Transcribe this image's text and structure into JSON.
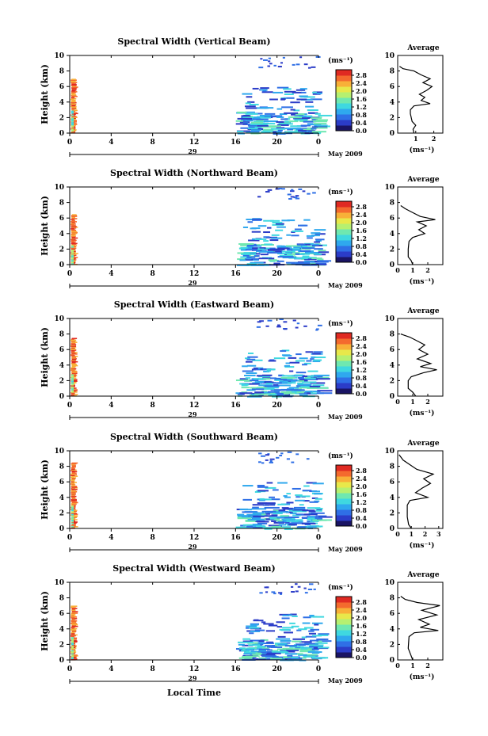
{
  "figure": {
    "shared": {
      "ylabel": "Height (km)",
      "xticks": [
        "0",
        "4",
        "8",
        "12",
        "16",
        "20",
        "0"
      ],
      "date": "May 2009",
      "day_label": "29",
      "colorbar_unit": "(ms⁻¹)",
      "colorbar_ticks": [
        "0.0",
        "0.4",
        "0.8",
        "1.2",
        "1.6",
        "2.0",
        "2.4",
        "2.8"
      ],
      "avg_title": "Average",
      "avg_xlabel": "(ms⁻¹)",
      "xlabel": "Local Time"
    },
    "colormap": [
      "#1a1464",
      "#2b3cc8",
      "#2f6fe6",
      "#2fa8ee",
      "#3fd8e0",
      "#6fe8b0",
      "#b6f070",
      "#e8e84a",
      "#f8b038",
      "#f46a2e",
      "#e02a22"
    ]
  },
  "chart_data": [
    {
      "type": "heatmap",
      "title": "Spectral Width (Vertical Beam)",
      "ylabel": "Height (km)",
      "xlim_hours": [
        0,
        24
      ],
      "ylim_km": [
        0,
        10
      ],
      "colorbar_range": [
        0.0,
        3.0
      ],
      "data_segments": [
        {
          "t_start": 0.0,
          "t_end": 0.7,
          "h_max": 7.0,
          "dominant": "high (~2.8)"
        },
        {
          "t_start": 16.0,
          "t_end": 24.0,
          "h_max": 10.0,
          "dominant": "low (0.3-1.2)"
        }
      ],
      "average_profile": {
        "xticks": [
          "1",
          "2"
        ],
        "xlim": [
          0,
          2.5
        ],
        "points": [
          [
            0.9,
            0
          ],
          [
            0.85,
            0.5
          ],
          [
            1.0,
            1.0
          ],
          [
            0.8,
            1.5
          ],
          [
            0.75,
            2.0
          ],
          [
            0.7,
            2.5
          ],
          [
            0.7,
            3.0
          ],
          [
            0.9,
            3.5
          ],
          [
            1.8,
            3.8
          ],
          [
            1.3,
            4.2
          ],
          [
            1.5,
            4.6
          ],
          [
            1.2,
            5.0
          ],
          [
            1.6,
            5.5
          ],
          [
            1.9,
            6.0
          ],
          [
            1.4,
            6.5
          ],
          [
            1.8,
            7.0
          ],
          [
            1.3,
            7.5
          ],
          [
            0.9,
            8.0
          ],
          [
            0.3,
            8.3
          ],
          [
            0.1,
            8.6
          ]
        ]
      }
    },
    {
      "type": "heatmap",
      "title": "Spectral Width (Northward Beam)",
      "ylabel": "Height (km)",
      "xlim_hours": [
        0,
        24
      ],
      "ylim_km": [
        0,
        10
      ],
      "colorbar_range": [
        0.0,
        3.0
      ],
      "data_segments": [
        {
          "t_start": 0.0,
          "t_end": 0.7,
          "h_max": 6.5,
          "dominant": "high (~2.8)"
        },
        {
          "t_start": 16.0,
          "t_end": 24.0,
          "h_max": 10.0,
          "dominant": "low (0.3-1.2)"
        }
      ],
      "average_profile": {
        "xticks": [
          "0",
          "1",
          "2"
        ],
        "xlim": [
          0,
          3
        ],
        "points": [
          [
            1.0,
            0
          ],
          [
            0.9,
            0.5
          ],
          [
            0.7,
            1.0
          ],
          [
            0.7,
            2.0
          ],
          [
            0.75,
            3.0
          ],
          [
            1.0,
            3.5
          ],
          [
            1.8,
            4.0
          ],
          [
            1.4,
            4.5
          ],
          [
            1.9,
            5.0
          ],
          [
            1.3,
            5.5
          ],
          [
            2.5,
            5.8
          ],
          [
            1.5,
            6.2
          ],
          [
            0.9,
            6.8
          ],
          [
            0.5,
            7.2
          ],
          [
            0.2,
            7.6
          ]
        ]
      }
    },
    {
      "type": "heatmap",
      "title": "Spectral Width (Eastward Beam)",
      "ylabel": "Height (km)",
      "xlim_hours": [
        0,
        24
      ],
      "ylim_km": [
        0,
        10
      ],
      "colorbar_range": [
        0.0,
        3.0
      ],
      "data_segments": [
        {
          "t_start": 0.0,
          "t_end": 0.8,
          "h_max": 7.5,
          "dominant": "high (~2.8)"
        },
        {
          "t_start": 16.0,
          "t_end": 24.0,
          "h_max": 10.0,
          "dominant": "low (0.3-1.2)"
        }
      ],
      "average_profile": {
        "xticks": [
          "0",
          "1",
          "2"
        ],
        "xlim": [
          0,
          3
        ],
        "points": [
          [
            1.2,
            0
          ],
          [
            1.0,
            0.5
          ],
          [
            0.7,
            1.0
          ],
          [
            0.7,
            2.0
          ],
          [
            0.9,
            2.5
          ],
          [
            1.7,
            3.0
          ],
          [
            2.6,
            3.4
          ],
          [
            1.5,
            3.8
          ],
          [
            2.2,
            4.2
          ],
          [
            1.3,
            4.8
          ],
          [
            2.0,
            5.4
          ],
          [
            1.4,
            6.0
          ],
          [
            1.8,
            6.6
          ],
          [
            1.2,
            7.2
          ],
          [
            0.8,
            7.6
          ],
          [
            0.2,
            8.0
          ]
        ]
      }
    },
    {
      "type": "heatmap",
      "title": "Spectral Width (Southward Beam)",
      "ylabel": "Height (km)",
      "xlim_hours": [
        0,
        24
      ],
      "ylim_km": [
        0,
        10
      ],
      "colorbar_range": [
        0.0,
        3.0
      ],
      "data_segments": [
        {
          "t_start": 0.0,
          "t_end": 0.7,
          "h_max": 8.5,
          "dominant": "high (~2.8)"
        },
        {
          "t_start": 16.0,
          "t_end": 24.0,
          "h_max": 10.0,
          "dominant": "low (0.3-1.2)"
        }
      ],
      "average_profile": {
        "xticks": [
          "0",
          "1",
          "2",
          "3"
        ],
        "xlim": [
          0,
          3.3
        ],
        "points": [
          [
            1.0,
            0
          ],
          [
            0.8,
            0.5
          ],
          [
            0.7,
            1.5
          ],
          [
            0.7,
            3.0
          ],
          [
            0.9,
            3.6
          ],
          [
            2.2,
            4.0
          ],
          [
            1.3,
            4.6
          ],
          [
            1.8,
            5.2
          ],
          [
            2.4,
            5.8
          ],
          [
            1.9,
            6.4
          ],
          [
            2.6,
            7.0
          ],
          [
            1.4,
            7.6
          ],
          [
            0.9,
            8.2
          ],
          [
            0.4,
            8.8
          ],
          [
            0.1,
            9.5
          ]
        ]
      }
    },
    {
      "type": "heatmap",
      "title": "Spectral Width (Westward Beam)",
      "ylabel": "Height (km)",
      "xlim_hours": [
        0,
        24
      ],
      "ylim_km": [
        0,
        10
      ],
      "colorbar_range": [
        0.0,
        3.0
      ],
      "data_segments": [
        {
          "t_start": 0.0,
          "t_end": 0.7,
          "h_max": 7.0,
          "dominant": "high (~2.8)"
        },
        {
          "t_start": 16.0,
          "t_end": 24.0,
          "h_max": 10.0,
          "dominant": "low (0.3-1.2)"
        }
      ],
      "average_profile": {
        "xticks": [
          "0",
          "1",
          "2"
        ],
        "xlim": [
          0,
          3
        ],
        "points": [
          [
            1.0,
            0
          ],
          [
            0.9,
            0.5
          ],
          [
            0.7,
            1.5
          ],
          [
            0.75,
            3.0
          ],
          [
            1.1,
            3.5
          ],
          [
            2.7,
            3.8
          ],
          [
            1.5,
            4.2
          ],
          [
            2.1,
            4.6
          ],
          [
            1.4,
            5.2
          ],
          [
            2.6,
            5.8
          ],
          [
            1.6,
            6.4
          ],
          [
            2.8,
            7.0
          ],
          [
            1.3,
            7.4
          ],
          [
            0.5,
            7.8
          ],
          [
            0.2,
            8.2
          ]
        ]
      }
    }
  ]
}
